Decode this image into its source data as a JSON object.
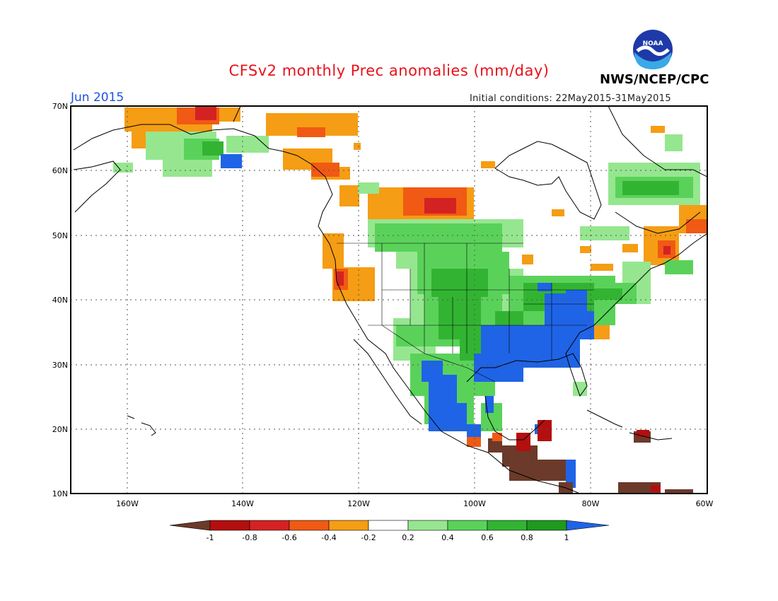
{
  "header": {
    "title": "CFSv2 monthly Prec anomalies (mm/day)",
    "month": "Jun 2015",
    "initial_conditions": "Initial conditions: 22May2015-31May2015",
    "agency": "NWS/NCEP/CPC",
    "logo_text": "NOAA"
  },
  "map": {
    "lat_labels": [
      "70N",
      "60N",
      "50N",
      "40N",
      "30N",
      "20N",
      "10N"
    ],
    "lon_labels": [
      "160W",
      "140W",
      "120W",
      "100W",
      "80W",
      "60W"
    ],
    "region": "North America",
    "grid": true
  },
  "legend": {
    "labels": [
      "-1",
      "-0.8",
      "-0.6",
      "-0.4",
      "-0.2",
      "0.2",
      "0.4",
      "0.6",
      "0.8",
      "1"
    ],
    "colors": [
      "#6b3a2a",
      "#b40f0f",
      "#d42222",
      "#f05a14",
      "#f59d14",
      "#ffffff",
      "#96e690",
      "#5ad25a",
      "#32b432",
      "#1e9a1e",
      "#1f64e6"
    ]
  }
}
